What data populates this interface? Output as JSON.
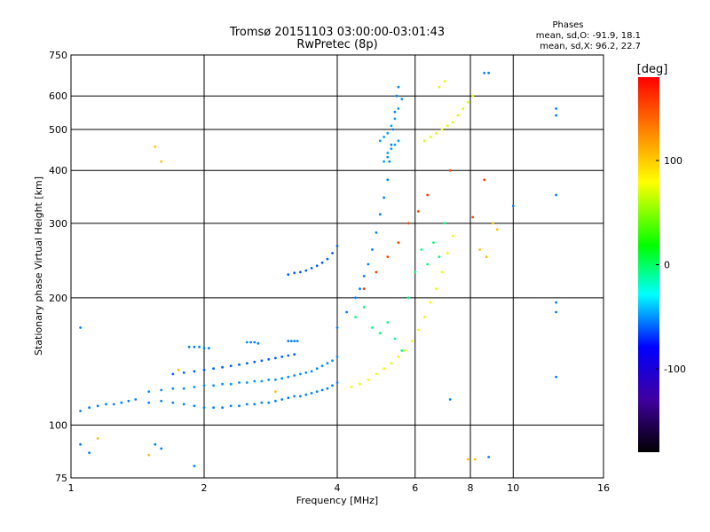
{
  "chart_data": {
    "type": "scatter",
    "title": "Tromsø 20151103 03:00:00-03:01:43",
    "subtitle": "RwPretec (8p)",
    "xlabel": "Frequency [MHz]",
    "ylabel": "Stationary phase Virtual Height [km]",
    "x_scale": "log2",
    "y_scale": "log",
    "xlim": [
      1,
      16
    ],
    "ylim": [
      75,
      750
    ],
    "x_ticks": [
      1,
      2,
      4,
      6,
      8,
      10,
      16
    ],
    "y_ticks": [
      75,
      100,
      200,
      300,
      400,
      500,
      600,
      750
    ],
    "grid": true,
    "stats": {
      "heading": "Phases",
      "line1": "mean, sd,O: -91.9, 18.1",
      "line2": "mean, sd,X:  96.2, 22.7"
    },
    "colorbar": {
      "label": "[deg]",
      "range": [
        -180,
        180
      ],
      "ticks": [
        100,
        0,
        -100
      ],
      "colormap": "rainbow"
    },
    "series": [
      {
        "trace": "low-F-dense",
        "phase": -100,
        "points": [
          [
            1.05,
            108
          ],
          [
            1.1,
            110
          ],
          [
            1.15,
            111
          ],
          [
            1.2,
            112
          ],
          [
            1.25,
            112
          ],
          [
            1.3,
            113
          ],
          [
            1.35,
            114
          ],
          [
            1.4,
            115
          ],
          [
            1.5,
            113
          ],
          [
            1.6,
            114
          ],
          [
            1.7,
            113
          ],
          [
            1.8,
            112
          ],
          [
            1.9,
            111
          ],
          [
            2.0,
            110
          ],
          [
            2.1,
            110
          ],
          [
            2.2,
            110
          ],
          [
            2.3,
            111
          ],
          [
            2.4,
            111
          ],
          [
            2.5,
            112
          ],
          [
            2.6,
            112
          ],
          [
            2.7,
            113
          ],
          [
            2.8,
            113
          ],
          [
            2.9,
            114
          ],
          [
            3.0,
            115
          ],
          [
            3.1,
            116
          ],
          [
            3.2,
            117
          ],
          [
            3.3,
            117
          ],
          [
            3.4,
            118
          ],
          [
            3.5,
            119
          ],
          [
            3.6,
            120
          ],
          [
            3.7,
            121
          ],
          [
            3.8,
            122
          ],
          [
            3.9,
            124
          ],
          [
            4.0,
            126
          ]
        ]
      },
      {
        "trace": "low-F-upper",
        "phase": -95,
        "points": [
          [
            1.5,
            120
          ],
          [
            1.6,
            121
          ],
          [
            1.7,
            122
          ],
          [
            1.8,
            122
          ],
          [
            1.9,
            123
          ],
          [
            2.0,
            124
          ],
          [
            2.1,
            124
          ],
          [
            2.2,
            125
          ],
          [
            2.3,
            125
          ],
          [
            2.4,
            126
          ],
          [
            2.5,
            126
          ],
          [
            2.6,
            127
          ],
          [
            2.7,
            127
          ],
          [
            2.8,
            128
          ],
          [
            2.9,
            128
          ],
          [
            3.0,
            129
          ],
          [
            3.1,
            130
          ],
          [
            3.2,
            131
          ],
          [
            3.3,
            132
          ],
          [
            3.4,
            133
          ],
          [
            3.5,
            134
          ],
          [
            3.6,
            136
          ],
          [
            3.7,
            138
          ],
          [
            3.8,
            140
          ],
          [
            3.9,
            142
          ],
          [
            4.0,
            145
          ]
        ]
      },
      {
        "trace": "low-F-mid",
        "phase": -110,
        "points": [
          [
            1.7,
            132
          ],
          [
            1.8,
            133
          ],
          [
            1.9,
            134
          ],
          [
            2.0,
            135
          ],
          [
            2.1,
            136
          ],
          [
            2.2,
            137
          ],
          [
            2.3,
            138
          ],
          [
            2.4,
            139
          ],
          [
            2.5,
            140
          ],
          [
            2.6,
            141
          ],
          [
            2.7,
            142
          ],
          [
            2.8,
            143
          ],
          [
            2.9,
            144
          ],
          [
            3.0,
            145
          ],
          [
            3.1,
            146
          ],
          [
            3.2,
            147
          ]
        ]
      },
      {
        "trace": "steps-150",
        "phase": -100,
        "points": [
          [
            1.85,
            153
          ],
          [
            1.9,
            153
          ],
          [
            1.95,
            153
          ],
          [
            2.0,
            152
          ],
          [
            2.05,
            152
          ],
          [
            2.5,
            157
          ],
          [
            2.55,
            157
          ],
          [
            2.6,
            157
          ],
          [
            2.65,
            156
          ],
          [
            3.1,
            158
          ],
          [
            3.15,
            158
          ],
          [
            3.2,
            158
          ],
          [
            3.25,
            158
          ]
        ]
      },
      {
        "trace": "layer-225",
        "phase": -110,
        "points": [
          [
            3.1,
            227
          ],
          [
            3.2,
            229
          ],
          [
            3.3,
            230
          ],
          [
            3.4,
            232
          ],
          [
            3.5,
            235
          ],
          [
            3.6,
            238
          ],
          [
            3.7,
            242
          ],
          [
            3.8,
            247
          ],
          [
            3.9,
            255
          ],
          [
            4.0,
            265
          ]
        ]
      },
      {
        "trace": "rise-blue",
        "phase": -100,
        "points": [
          [
            4.0,
            170
          ],
          [
            4.2,
            185
          ],
          [
            4.4,
            200
          ],
          [
            4.5,
            210
          ],
          [
            4.6,
            225
          ],
          [
            4.7,
            240
          ],
          [
            4.8,
            260
          ],
          [
            4.9,
            285
          ],
          [
            5.0,
            315
          ],
          [
            5.1,
            345
          ],
          [
            5.2,
            380
          ],
          [
            5.25,
            420
          ],
          [
            5.3,
            460
          ],
          [
            5.35,
            500
          ],
          [
            5.4,
            550
          ],
          [
            5.45,
            600
          ],
          [
            5.5,
            630
          ]
        ]
      },
      {
        "trace": "high-cluster-O",
        "phase": -90,
        "points": [
          [
            5.0,
            470
          ],
          [
            5.1,
            480
          ],
          [
            5.2,
            490
          ],
          [
            5.3,
            510
          ],
          [
            5.4,
            530
          ],
          [
            5.5,
            560
          ],
          [
            5.6,
            590
          ],
          [
            5.2,
            440
          ],
          [
            5.3,
            450
          ],
          [
            5.4,
            460
          ],
          [
            5.5,
            470
          ],
          [
            5.1,
            420
          ],
          [
            5.2,
            430
          ]
        ]
      },
      {
        "trace": "x-mode-yellow",
        "phase": 95,
        "points": [
          [
            4.3,
            123
          ],
          [
            4.5,
            125
          ],
          [
            4.7,
            128
          ],
          [
            4.9,
            132
          ],
          [
            5.1,
            136
          ],
          [
            5.3,
            140
          ],
          [
            5.5,
            145
          ],
          [
            5.7,
            150
          ],
          [
            5.9,
            158
          ],
          [
            6.1,
            168
          ],
          [
            6.3,
            180
          ],
          [
            6.5,
            195
          ],
          [
            6.7,
            210
          ],
          [
            6.9,
            230
          ],
          [
            7.1,
            255
          ],
          [
            7.3,
            280
          ]
        ]
      },
      {
        "trace": "x-mode-high",
        "phase": 90,
        "points": [
          [
            6.3,
            470
          ],
          [
            6.5,
            480
          ],
          [
            6.7,
            490
          ],
          [
            6.9,
            500
          ],
          [
            7.1,
            510
          ],
          [
            7.3,
            520
          ],
          [
            7.5,
            540
          ],
          [
            7.7,
            560
          ],
          [
            7.9,
            580
          ],
          [
            8.1,
            600
          ],
          [
            6.8,
            630
          ],
          [
            7.0,
            650
          ]
        ]
      },
      {
        "trace": "scatter-mid",
        "phase": -20,
        "points": [
          [
            4.4,
            180
          ],
          [
            4.6,
            190
          ],
          [
            4.8,
            170
          ],
          [
            5.0,
            165
          ],
          [
            5.2,
            175
          ],
          [
            5.4,
            160
          ],
          [
            5.6,
            150
          ],
          [
            5.8,
            200
          ],
          [
            6.0,
            230
          ],
          [
            6.2,
            260
          ],
          [
            6.4,
            240
          ],
          [
            6.6,
            270
          ],
          [
            6.8,
            250
          ],
          [
            7.0,
            300
          ]
        ]
      },
      {
        "trace": "scatter-misc",
        "phase": 160,
        "points": [
          [
            4.6,
            210
          ],
          [
            4.9,
            230
          ],
          [
            5.2,
            250
          ],
          [
            5.5,
            270
          ],
          [
            5.8,
            300
          ],
          [
            6.1,
            320
          ],
          [
            6.4,
            350
          ],
          [
            7.2,
            400
          ],
          [
            8.6,
            380
          ],
          [
            8.1,
            310
          ]
        ]
      },
      {
        "trace": "isolated",
        "phase": -100,
        "points": [
          [
            1.6,
            88
          ],
          [
            1.55,
            90
          ],
          [
            1.05,
            90
          ],
          [
            1.1,
            86
          ],
          [
            1.9,
            80
          ],
          [
            8.8,
            84
          ],
          [
            12.5,
            560
          ],
          [
            12.5,
            540
          ],
          [
            12.5,
            350
          ],
          [
            12.5,
            195
          ],
          [
            12.5,
            185
          ],
          [
            12.5,
            130
          ],
          [
            8.8,
            680
          ],
          [
            10.0,
            330
          ],
          [
            8.6,
            680
          ],
          [
            7.2,
            115
          ],
          [
            1.05,
            170
          ]
        ]
      },
      {
        "trace": "isolated-warm",
        "phase": 120,
        "points": [
          [
            1.55,
            455
          ],
          [
            1.6,
            420
          ],
          [
            1.15,
            93
          ],
          [
            7.9,
            83
          ],
          [
            8.2,
            83
          ],
          [
            9.0,
            300
          ],
          [
            8.4,
            260
          ],
          [
            8.7,
            250
          ],
          [
            9.2,
            290
          ],
          [
            1.5,
            85
          ],
          [
            1.75,
            135
          ],
          [
            2.9,
            120
          ]
        ]
      }
    ]
  }
}
